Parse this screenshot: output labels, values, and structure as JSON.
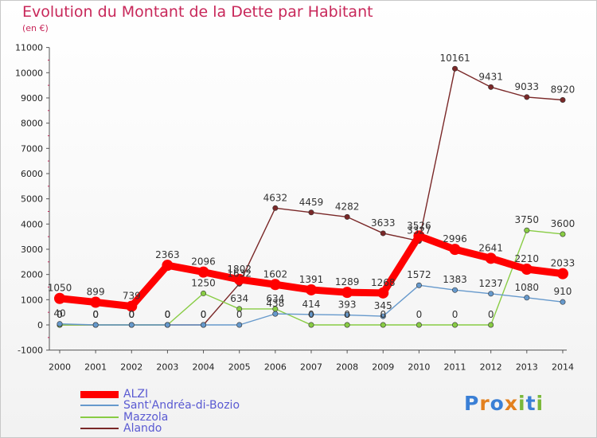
{
  "title": "Evolution du Montant de la Dette par Habitant",
  "subtitle": "(en €)",
  "logo": {
    "letters": [
      "P",
      "r",
      "o",
      "x",
      "i",
      "t",
      "i"
    ],
    "colors": [
      "#3a7fd5",
      "#e3801e",
      "#3a7fd5",
      "#e3801e",
      "#7ab83a",
      "#3a7fd5",
      "#7ab83a"
    ]
  },
  "chart_data": {
    "type": "line",
    "title": "Evolution du Montant de la Dette par Habitant",
    "ylabel": "(en €)",
    "x": [
      "2000",
      "2001",
      "2002",
      "2003",
      "2004",
      "2005",
      "2006",
      "2007",
      "2008",
      "2009",
      "2010",
      "2011",
      "2012",
      "2013",
      "2014"
    ],
    "ylim": [
      -1000,
      11000
    ],
    "yticks": [
      -1000,
      0,
      1000,
      2000,
      3000,
      4000,
      5000,
      6000,
      7000,
      8000,
      9000,
      10000,
      11000
    ],
    "grid": false,
    "legend_position": "bottom-left",
    "series": [
      {
        "name": "ALZI",
        "color": "#ff0000",
        "values": [
          1050,
          899,
          739,
          2363,
          2096,
          1802,
          1602,
          1391,
          1289,
          1268,
          3526,
          2996,
          2641,
          2210,
          2033
        ]
      },
      {
        "name": "Sant'Andréa-di-Bozio",
        "color": "#6699cc",
        "values": [
          40,
          0,
          0,
          0,
          0,
          0,
          438,
          414,
          393,
          345,
          1572,
          1383,
          1237,
          1080,
          910
        ]
      },
      {
        "name": "Mazzola",
        "color": "#88cc44",
        "values": [
          0,
          0,
          0,
          0,
          1250,
          634,
          634,
          0,
          0,
          0,
          0,
          0,
          0,
          3750,
          3600
        ]
      },
      {
        "name": "Alando",
        "color": "#7a2828",
        "values": [
          0,
          0,
          0,
          0,
          0,
          1632,
          4632,
          4459,
          4282,
          3633,
          3327,
          10161,
          9431,
          9033,
          8920
        ]
      }
    ]
  }
}
